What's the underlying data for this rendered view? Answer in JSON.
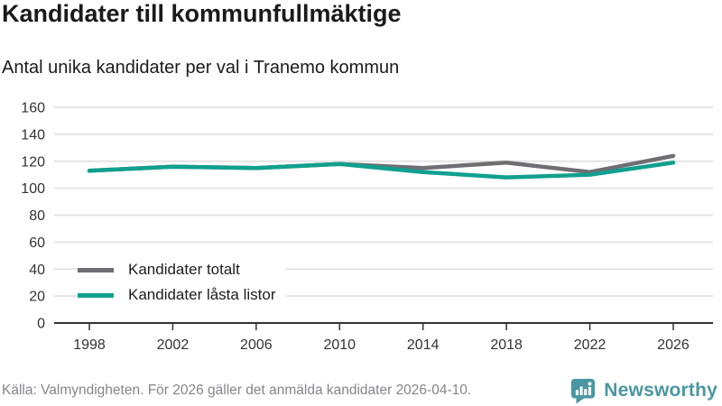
{
  "header": {
    "title": "Kandidater till kommunfullmäktige",
    "subtitle": "Antal unika kandidater per val i Tranemo kommun"
  },
  "chart_data": {
    "type": "line",
    "x": [
      1998,
      2002,
      2006,
      2010,
      2014,
      2018,
      2022,
      2026
    ],
    "series": [
      {
        "name": "Kandidater totalt",
        "color": "#6e6e73",
        "values": [
          113,
          116,
          115,
          118,
          115,
          119,
          112,
          124
        ]
      },
      {
        "name": "Kandidater låsta listor",
        "color": "#10a08f",
        "values": [
          113,
          116,
          115,
          118,
          112,
          108,
          110,
          119
        ]
      }
    ],
    "title": "Kandidater till kommunfullmäktige",
    "subtitle": "Antal unika kandidater per val i Tranemo kommun",
    "xlabel": "",
    "ylabel": "",
    "ylim": [
      0,
      160
    ],
    "ytick_step": 20,
    "grid": true,
    "legend_position": "inside-bottom-left"
  },
  "footer": {
    "source": "Källa: Valmyndigheten. För 2026 gäller det anmälda kandidater 2026-04-10.",
    "brand": "Newsworthy"
  },
  "colors": {
    "grid": "#e4e4e4",
    "axis": "#333333",
    "axis_text": "#333333",
    "title_text": "#1a1a1a",
    "source_text": "#84858c",
    "brand_teal": "#4a96a2",
    "series_gray": "#6e6e73",
    "series_teal": "#10a08f"
  }
}
